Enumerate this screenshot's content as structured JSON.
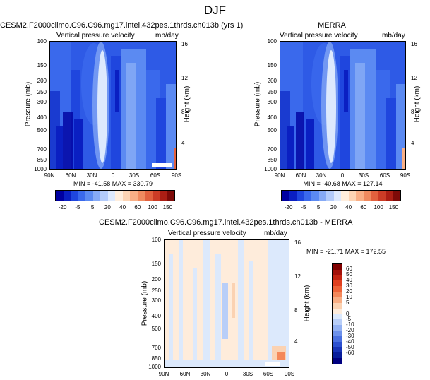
{
  "title": "DJF",
  "panels": [
    {
      "title": "CESM2.F2000climo.C96.C96.mg17.intel.432pes.1thrds.ch013b (yrs 1)",
      "subtitle_left": "Vertical pressure velocity",
      "subtitle_right": "mb/day",
      "ylabel_left": "Pressure (mb)",
      "ylabel_right": "Height (km)",
      "stats": "MIN = -41.58   MAX = 330.79"
    },
    {
      "title": "MERRA",
      "subtitle_left": "Vertical pressure velocity",
      "subtitle_right": "mb/day",
      "ylabel_left": "Pressure (mb)",
      "ylabel_right": "Height (km)",
      "stats": "MIN = -40.68   MAX = 127.14"
    },
    {
      "title": "CESM2.F2000climo.C96.C96.mg17.intel.432pes.1thrds.ch013b - MERRA",
      "subtitle_left": "Vertical pressure velocity",
      "subtitle_right": "mb/day",
      "ylabel_left": "Pressure (mb)",
      "ylabel_right": "Height (km)",
      "stats": "MIN = -21.71   MAX = 172.55"
    }
  ],
  "axes": {
    "pressure_ticks": [
      "100",
      "150",
      "200",
      "250",
      "300",
      "400",
      "500",
      "700",
      "850",
      "1000"
    ],
    "height_ticks": [
      "16",
      "12",
      "8",
      "4"
    ],
    "lat_ticks": [
      "90N",
      "60N",
      "30N",
      "0",
      "30S",
      "60S",
      "90S"
    ]
  },
  "colorbar_top": {
    "labels": [
      "-20",
      "-5",
      "5",
      "20",
      "40",
      "60",
      "100",
      "150"
    ],
    "colors": [
      "#0000a0",
      "#0a1fc2",
      "#1f46de",
      "#3a69ec",
      "#5b8af2",
      "#86aaf6",
      "#b3cbfa",
      "#dde9fd",
      "#ffeedd",
      "#fdd4b4",
      "#f9af86",
      "#f08a5f",
      "#e2613e",
      "#cc3c26",
      "#ac1e14",
      "#7e0a08"
    ]
  },
  "colorbar_diff": {
    "labels": [
      "60",
      "50",
      "40",
      "30",
      "20",
      "10",
      "5",
      "0",
      "-5",
      "-10",
      "-20",
      "-30",
      "-40",
      "-50",
      "-60"
    ],
    "colors": [
      "#800000",
      "#a3110a",
      "#c42412",
      "#e0401f",
      "#ee6338",
      "#f4885a",
      "#f8ad83",
      "#fbd2b2",
      "#feecdb",
      "#dce9fc",
      "#b8cef8",
      "#93b1f2",
      "#6d91eb",
      "#4a70e0",
      "#2c50cf",
      "#1733b6",
      "#081d9a",
      "#000080"
    ]
  },
  "chart_data": [
    {
      "type": "heatmap",
      "title": "CESM2.F2000climo.C96.C96.mg17.intel.432pes.1thrds.ch013b (yrs 1)",
      "xlabel": "",
      "ylabel": "Pressure (mb)",
      "x": [
        "90N",
        "60N",
        "30N",
        "0",
        "30S",
        "60S",
        "90S"
      ],
      "ylim": [
        1000,
        100
      ],
      "min": -41.58,
      "max": 330.79,
      "units": "mb/day"
    },
    {
      "type": "heatmap",
      "title": "MERRA",
      "xlabel": "",
      "ylabel": "Pressure (mb)",
      "x": [
        "90N",
        "60N",
        "30N",
        "0",
        "30S",
        "60S",
        "90S"
      ],
      "ylim": [
        1000,
        100
      ],
      "min": -40.68,
      "max": 127.14,
      "units": "mb/day"
    },
    {
      "type": "heatmap",
      "title": "CESM2.F2000climo.C96.C96.mg17.intel.432pes.1thrds.ch013b - MERRA",
      "xlabel": "",
      "ylabel": "Pressure (mb)",
      "x": [
        "90N",
        "60N",
        "30N",
        "0",
        "30S",
        "60S",
        "90S"
      ],
      "ylim": [
        1000,
        100
      ],
      "min": -21.71,
      "max": 172.55,
      "units": "mb/day"
    }
  ]
}
